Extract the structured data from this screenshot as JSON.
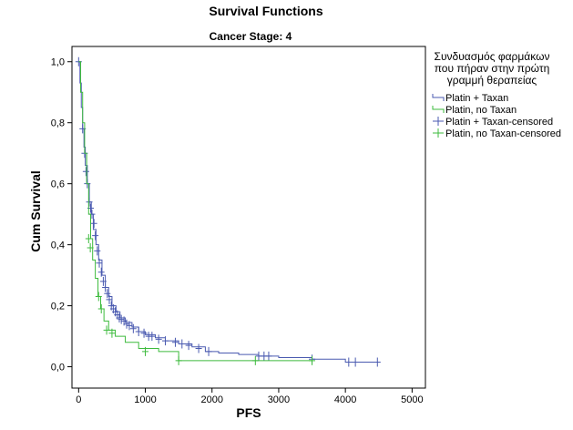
{
  "chart_data": {
    "type": "line",
    "subtype": "kaplan-meier-step",
    "title": "Survival Functions",
    "subtitle": "Cancer Stage: 4",
    "xlabel": "PFS",
    "ylabel": "Cum Survival",
    "xlim": [
      -100,
      5200
    ],
    "ylim": [
      -0.07,
      1.05
    ],
    "x_ticks": [
      0,
      1000,
      2000,
      3000,
      4000,
      5000
    ],
    "y_ticks": [
      0.0,
      0.2,
      0.4,
      0.6,
      0.8,
      1.0
    ],
    "y_tick_labels": [
      "0,0",
      "0,2",
      "0,4",
      "0,6",
      "0,8",
      "1,0"
    ],
    "grid": false,
    "legend": {
      "position": "right",
      "title_lines": [
        "Συνδυασμός φαρμάκων",
        "που πήραν στην πρώτη",
        "γραμμή θεραπείας"
      ],
      "entries": [
        {
          "label": "Platin + Taxan",
          "color": "#4a5ab0",
          "marker": "line"
        },
        {
          "label": "Platin, no Taxan",
          "color": "#3dbb3d",
          "marker": "line"
        },
        {
          "label": "Platin + Taxan-censored",
          "color": "#4a5ab0",
          "marker": "cross"
        },
        {
          "label": "Platin, no Taxan-censored",
          "color": "#3dbb3d",
          "marker": "cross"
        }
      ]
    },
    "series": [
      {
        "name": "Platin + Taxan",
        "color": "#4a5ab0",
        "x": [
          0,
          20,
          40,
          60,
          80,
          100,
          130,
          160,
          190,
          220,
          260,
          300,
          350,
          400,
          450,
          500,
          560,
          620,
          700,
          800,
          900,
          1000,
          1150,
          1300,
          1500,
          1700,
          1900,
          2100,
          2400,
          2700,
          3000,
          3500,
          4000,
          4500
        ],
        "y": [
          1.0,
          0.93,
          0.85,
          0.78,
          0.72,
          0.66,
          0.6,
          0.54,
          0.5,
          0.45,
          0.4,
          0.35,
          0.3,
          0.26,
          0.23,
          0.2,
          0.18,
          0.16,
          0.145,
          0.13,
          0.115,
          0.105,
          0.095,
          0.085,
          0.075,
          0.065,
          0.05,
          0.045,
          0.04,
          0.035,
          0.03,
          0.025,
          0.015,
          0.015
        ],
        "censored_x": [
          0,
          60,
          90,
          110,
          130,
          160,
          180,
          200,
          230,
          250,
          280,
          310,
          340,
          370,
          400,
          430,
          460,
          490,
          520,
          550,
          580,
          610,
          640,
          680,
          720,
          760,
          820,
          900,
          980,
          1050,
          1100,
          1200,
          1300,
          1450,
          1550,
          1650,
          1800,
          1950,
          2700,
          2780,
          2850,
          3500,
          4050,
          4150,
          4480
        ],
        "censored_y": [
          1.0,
          0.78,
          0.7,
          0.64,
          0.6,
          0.54,
          0.52,
          0.5,
          0.47,
          0.43,
          0.38,
          0.34,
          0.31,
          0.28,
          0.26,
          0.24,
          0.22,
          0.2,
          0.19,
          0.18,
          0.17,
          0.16,
          0.155,
          0.15,
          0.14,
          0.135,
          0.125,
          0.115,
          0.11,
          0.1,
          0.1,
          0.09,
          0.085,
          0.08,
          0.075,
          0.07,
          0.06,
          0.05,
          0.035,
          0.035,
          0.035,
          0.025,
          0.015,
          0.015,
          0.015
        ]
      },
      {
        "name": "Platin, no Taxan",
        "color": "#3dbb3d",
        "x": [
          0,
          30,
          60,
          90,
          120,
          150,
          180,
          210,
          250,
          290,
          330,
          380,
          450,
          550,
          700,
          900,
          1200,
          1500,
          2000,
          2500,
          3000,
          3500
        ],
        "y": [
          1.0,
          0.9,
          0.8,
          0.7,
          0.6,
          0.5,
          0.42,
          0.35,
          0.29,
          0.23,
          0.19,
          0.15,
          0.12,
          0.1,
          0.08,
          0.06,
          0.05,
          0.02,
          0.02,
          0.02,
          0.02,
          0.02
        ],
        "censored_x": [
          150,
          175,
          300,
          340,
          420,
          500,
          1000,
          1500,
          2650,
          3500
        ],
        "censored_y": [
          0.42,
          0.39,
          0.23,
          0.19,
          0.12,
          0.11,
          0.05,
          0.02,
          0.02,
          0.02
        ]
      }
    ]
  }
}
